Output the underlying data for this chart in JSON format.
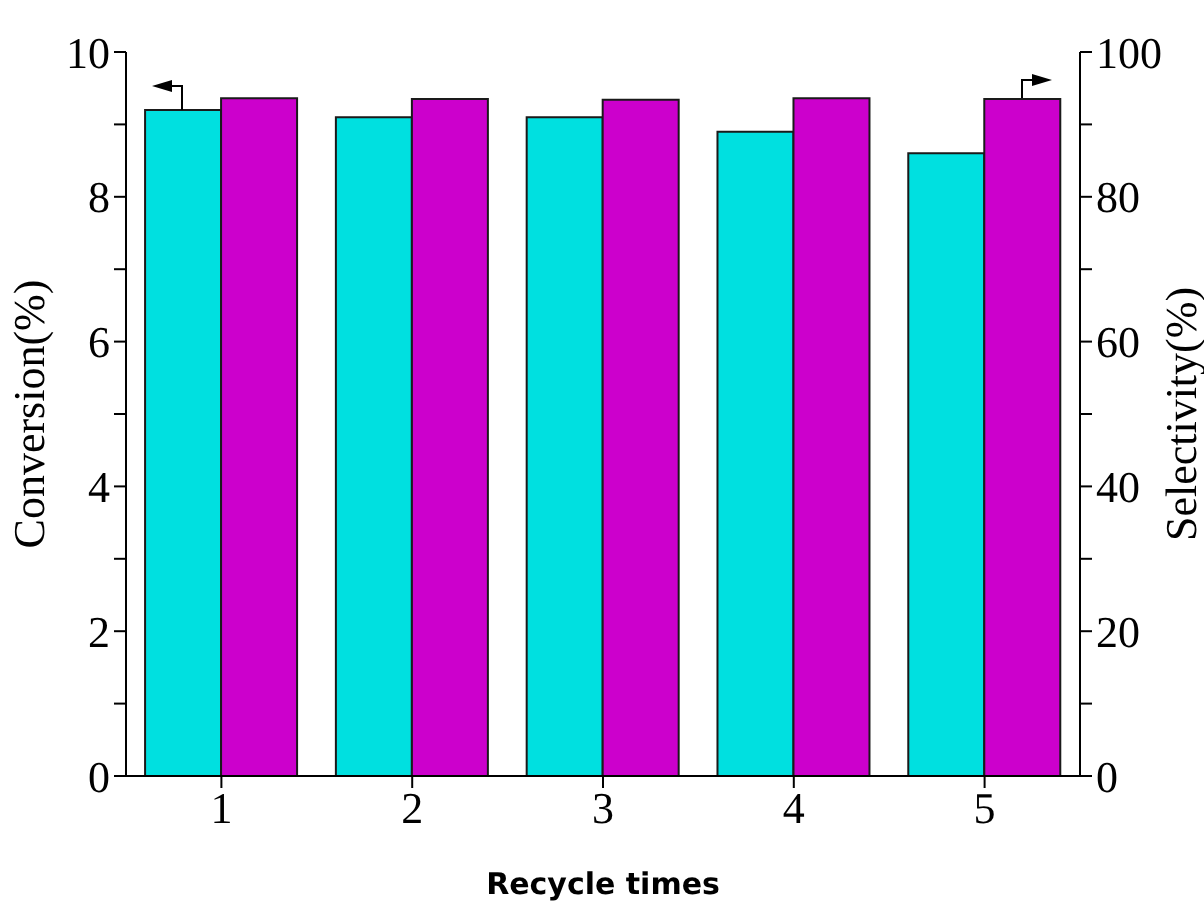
{
  "chart_data": {
    "type": "bar",
    "xlabel": "Recycle times",
    "ylabel": "Conversion(%)",
    "y2label": "Selectivity(%)",
    "categories": [
      "1",
      "2",
      "3",
      "4",
      "5"
    ],
    "series": [
      {
        "color": "#00e0e0",
        "values": [
          9.2,
          9.1,
          9.1,
          8.9,
          8.6
        ]
      },
      {
        "color": "#cc00cc",
        "values": [
          93.6,
          93.5,
          93.4,
          93.6,
          93.5
        ],
        "axis": "y2"
      }
    ],
    "ylim": [
      0,
      10
    ],
    "yticks": [
      0,
      {
        "value": 1,
        "label": null
      },
      2,
      {
        "value": 3,
        "label": null
      },
      4,
      {
        "value": 5,
        "label": null
      },
      6,
      {
        "value": 7,
        "label": null
      },
      8,
      {
        "value": 9,
        "label": null
      },
      10
    ],
    "y2lim": [
      0,
      100
    ],
    "y2ticks": [
      0,
      {
        "value": 10,
        "label": null
      },
      20,
      {
        "value": 30,
        "label": null
      },
      40,
      {
        "value": 50,
        "label": null
      },
      60,
      {
        "value": 70,
        "label": null
      },
      80,
      {
        "value": 90,
        "label": null
      },
      100
    ],
    "grid": false,
    "legend": false
  }
}
